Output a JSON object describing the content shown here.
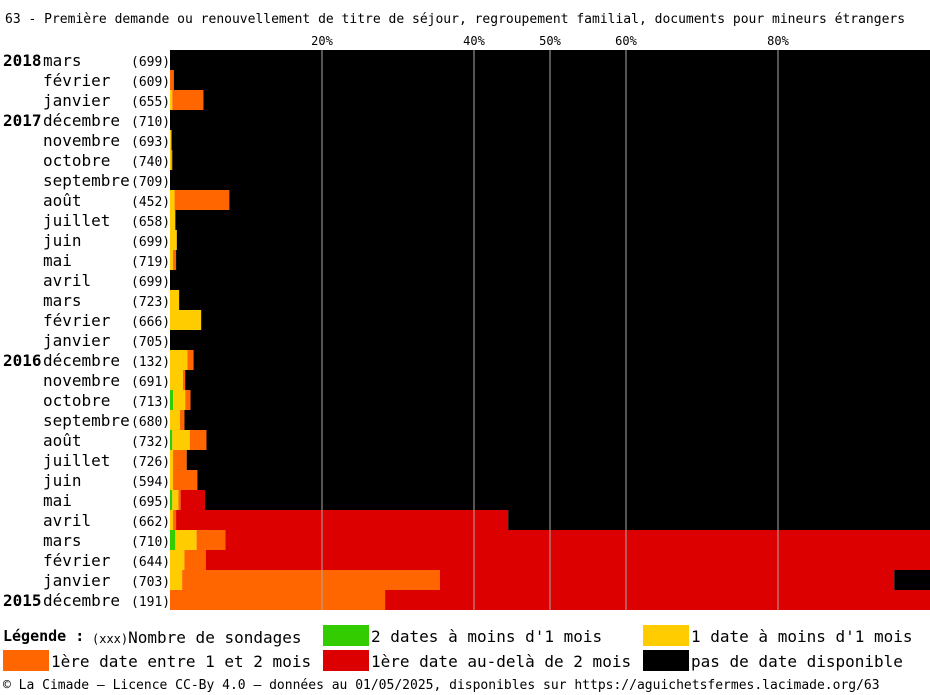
{
  "title": "63 - Première demande ou renouvellement de titre de séjour, regroupement familial, documents pour mineurs étrangers",
  "colors": {
    "lt1_2dates": "#33cc00",
    "lt1_1date": "#ffcc00",
    "first_1_2": "#ff6600",
    "first_gt2": "#dd0000",
    "none": "#000000",
    "grid": "#aaaaaa"
  },
  "legend": {
    "title": "Légende :",
    "count_prefix": "(xxx)",
    "count_label": "Nombre de sondages",
    "items": [
      {
        "key": "lt1_2dates",
        "label": "2 dates à moins d'1 mois"
      },
      {
        "key": "lt1_1date",
        "label": "1 date à moins d'1 mois"
      },
      {
        "key": "first_1_2",
        "label": "1ère date entre 1 et 2 mois"
      },
      {
        "key": "first_gt2",
        "label": "1ère date au-delà de 2 mois"
      },
      {
        "key": "none",
        "label": "pas de date disponible"
      }
    ]
  },
  "footer": "© La Cimade — Licence CC-By 4.0 — données au 01/05/2025, disponibles sur https://aguichetsfermes.lacimade.org/63",
  "chart_data": {
    "type": "bar",
    "orientation": "horizontal",
    "stacked": true,
    "unit": "%",
    "xlim": [
      0,
      100
    ],
    "x_ticks": [
      "20%",
      "40%",
      "50%",
      "60%",
      "80%"
    ],
    "x_tick_values": [
      20,
      40,
      50,
      60,
      80
    ],
    "grid": true,
    "series_keys": [
      "lt1_2dates",
      "lt1_1date",
      "first_1_2",
      "first_gt2",
      "none"
    ],
    "rows": [
      {
        "year": "2018",
        "month": "mars",
        "count": "(699)",
        "values": [
          0,
          0,
          0,
          0,
          100
        ]
      },
      {
        "year": "",
        "month": "février",
        "count": "(609)",
        "values": [
          0,
          0,
          0.5,
          0,
          99.5
        ]
      },
      {
        "year": "",
        "month": "janvier",
        "count": "(655)",
        "values": [
          0,
          0.3,
          4.1,
          0,
          95.6
        ]
      },
      {
        "year": "2017",
        "month": "décembre",
        "count": "(710)",
        "values": [
          0,
          0,
          0,
          0,
          100
        ]
      },
      {
        "year": "",
        "month": "novembre",
        "count": "(693)",
        "values": [
          0,
          0.2,
          0,
          0,
          99.8
        ]
      },
      {
        "year": "",
        "month": "octobre",
        "count": "(740)",
        "values": [
          0,
          0.2,
          0.1,
          0,
          99.7
        ]
      },
      {
        "year": "",
        "month": "septembre",
        "count": "(709)",
        "values": [
          0,
          0,
          0,
          0,
          100
        ]
      },
      {
        "year": "",
        "month": "août",
        "count": "(452)",
        "values": [
          0,
          0.6,
          7.2,
          0,
          92.2
        ]
      },
      {
        "year": "",
        "month": "juillet",
        "count": "(658)",
        "values": [
          0,
          0.7,
          0,
          0,
          99.3
        ]
      },
      {
        "year": "",
        "month": "juin",
        "count": "(699)",
        "values": [
          0,
          0.9,
          0,
          0,
          99.1
        ]
      },
      {
        "year": "",
        "month": "mai",
        "count": "(719)",
        "values": [
          0,
          0.4,
          0.4,
          0,
          99.2
        ]
      },
      {
        "year": "",
        "month": "avril",
        "count": "(699)",
        "values": [
          0,
          0,
          0,
          0,
          100
        ]
      },
      {
        "year": "",
        "month": "mars",
        "count": "(723)",
        "values": [
          0,
          1.2,
          0,
          0,
          98.8
        ]
      },
      {
        "year": "",
        "month": "février",
        "count": "(666)",
        "values": [
          0,
          4.1,
          0,
          0,
          95.9
        ]
      },
      {
        "year": "",
        "month": "janvier",
        "count": "(705)",
        "values": [
          0,
          0,
          0,
          0,
          100
        ]
      },
      {
        "year": "2016",
        "month": "décembre",
        "count": "(132)",
        "values": [
          0,
          2.3,
          0.8,
          0,
          96.9
        ]
      },
      {
        "year": "",
        "month": "novembre",
        "count": "(691)",
        "values": [
          0,
          1.7,
          0.3,
          0,
          98.0
        ]
      },
      {
        "year": "",
        "month": "octobre",
        "count": "(713)",
        "values": [
          0.4,
          1.6,
          0.7,
          0,
          97.3
        ]
      },
      {
        "year": "",
        "month": "septembre",
        "count": "(680)",
        "values": [
          0,
          1.3,
          0.6,
          0,
          98.1
        ]
      },
      {
        "year": "",
        "month": "août",
        "count": "(732)",
        "values": [
          0.3,
          2.3,
          2.2,
          0,
          95.2
        ]
      },
      {
        "year": "",
        "month": "juillet",
        "count": "(726)",
        "values": [
          0,
          0.4,
          1.8,
          0,
          97.8
        ]
      },
      {
        "year": "",
        "month": "juin",
        "count": "(594)",
        "values": [
          0,
          0.4,
          3.2,
          0,
          96.4
        ]
      },
      {
        "year": "",
        "month": "mai",
        "count": "(695)",
        "values": [
          0.3,
          0.8,
          0.3,
          3.2,
          95.4
        ]
      },
      {
        "year": "",
        "month": "avril",
        "count": "(662)",
        "values": [
          0,
          0.4,
          0.4,
          43.7,
          55.5
        ]
      },
      {
        "year": "",
        "month": "mars",
        "count": "(710)",
        "values": [
          0.7,
          2.8,
          3.8,
          92.7,
          0
        ]
      },
      {
        "year": "",
        "month": "février",
        "count": "(644)",
        "values": [
          0,
          1.9,
          2.8,
          95.3,
          0
        ]
      },
      {
        "year": "",
        "month": "janvier",
        "count": "(703)",
        "values": [
          0,
          1.6,
          33.9,
          59.8,
          4.7
        ]
      },
      {
        "year": "2015",
        "month": "décembre",
        "count": "(191)",
        "values": [
          0,
          0,
          28.3,
          71.7,
          0
        ]
      }
    ]
  }
}
